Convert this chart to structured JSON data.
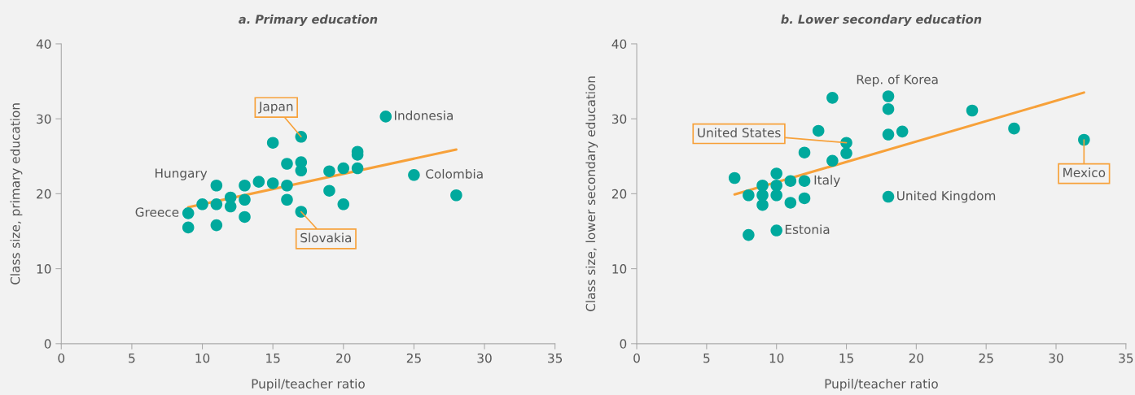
{
  "chart_data": [
    {
      "type": "scatter",
      "title": "a. Primary education",
      "xlabel": "Pupil/teacher ratio",
      "ylabel": "Class size, primary education",
      "xlim": [
        0,
        35
      ],
      "xticks": [
        0,
        5,
        10,
        15,
        20,
        25,
        30,
        35
      ],
      "ylim": [
        0,
        40
      ],
      "yticks": [
        0,
        10,
        20,
        30,
        40
      ],
      "grid": false,
      "series": [
        {
          "marker": "circle",
          "color": "#00a99d",
          "x": [
            23,
            17,
            15,
            21,
            21,
            16,
            17,
            17,
            19,
            20,
            21,
            25,
            28,
            11,
            13,
            14,
            15,
            16,
            19,
            12,
            13,
            16,
            10,
            11,
            12,
            20,
            9,
            17,
            13,
            9,
            11
          ],
          "values": [
            30.3,
            27.6,
            26.8,
            25.6,
            25.2,
            24.0,
            24.2,
            23.1,
            23.0,
            23.4,
            23.4,
            22.5,
            19.8,
            21.1,
            21.1,
            21.6,
            21.4,
            21.1,
            20.4,
            19.5,
            19.2,
            19.2,
            18.6,
            18.6,
            18.3,
            18.6,
            17.4,
            17.6,
            16.9,
            15.5,
            15.8
          ]
        },
        {
          "type": "line",
          "marker": "none",
          "color": "#f7a13a",
          "x": [
            9,
            28
          ],
          "values": [
            18.2,
            25.9
          ]
        }
      ],
      "annotations": [
        {
          "text": "Japan",
          "x": 17,
          "y": 27.6
        },
        {
          "text": "Indonesia",
          "x": 23,
          "y": 30.3
        },
        {
          "text": "Hungary",
          "x": 11,
          "y": 21.1
        },
        {
          "text": "Colombia",
          "x": 25,
          "y": 22.5
        },
        {
          "text": "Greece",
          "x": 9,
          "y": 17.4
        },
        {
          "text": "Slovakia",
          "x": 17,
          "y": 17.6
        }
      ]
    },
    {
      "type": "scatter",
      "title": "b. Lower secondary education",
      "xlabel": "Pupil/teacher ratio",
      "ylabel": "Class size, lower secondary education",
      "xlim": [
        0,
        35
      ],
      "xticks": [
        0,
        5,
        10,
        15,
        20,
        25,
        30,
        35
      ],
      "ylim": [
        0,
        40
      ],
      "yticks": [
        0,
        10,
        20,
        30,
        40
      ],
      "grid": false,
      "series": [
        {
          "marker": "circle",
          "color": "#00a99d",
          "x": [
            14,
            18,
            18,
            24,
            13,
            15,
            18,
            19,
            27,
            32,
            12,
            15,
            14,
            7,
            10,
            10,
            9,
            11,
            12,
            8,
            9,
            10,
            12,
            9,
            11,
            18,
            10,
            8
          ],
          "values": [
            32.8,
            33.0,
            31.3,
            31.1,
            28.4,
            26.8,
            27.9,
            28.3,
            28.7,
            27.2,
            25.5,
            25.4,
            24.4,
            22.1,
            22.7,
            21.1,
            21.1,
            21.7,
            21.7,
            19.8,
            19.8,
            19.8,
            19.4,
            18.5,
            18.8,
            19.6,
            15.1,
            14.5
          ]
        },
        {
          "type": "line",
          "marker": "none",
          "color": "#f7a13a",
          "x": [
            7,
            32
          ],
          "values": [
            19.9,
            33.5
          ]
        }
      ],
      "annotations": [
        {
          "text": "Rep. of Korea",
          "x": 18,
          "y": 33.0
        },
        {
          "text": "United States",
          "x": 15,
          "y": 26.8
        },
        {
          "text": "Italy",
          "x": 12,
          "y": 21.7
        },
        {
          "text": "United Kingdom",
          "x": 18,
          "y": 19.6
        },
        {
          "text": "Estonia",
          "x": 10,
          "y": 15.1
        },
        {
          "text": "Mexico",
          "x": 32,
          "y": 27.2
        }
      ]
    }
  ]
}
